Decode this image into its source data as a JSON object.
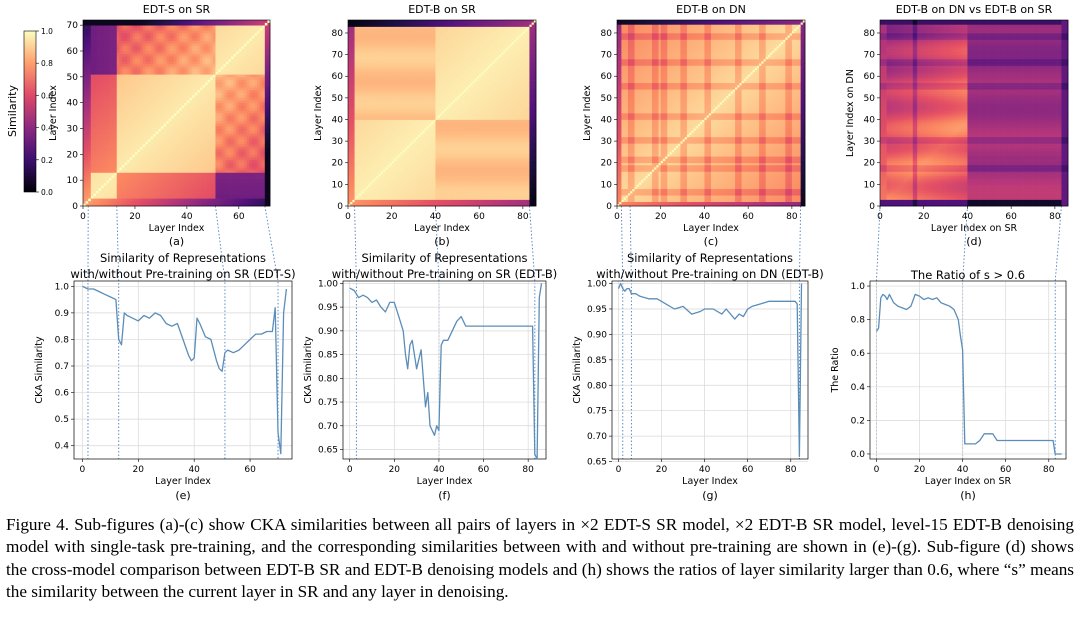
{
  "figure": {
    "caption": "Figure 4. Sub-figures (a)-(c) show CKA similarities between all pairs of layers in ×2 EDT-S SR model, ×2 EDT-B SR model, level-15 EDT-B denoising model with single-task pre-training, and the corresponding similarities between with and without pre-training are shown in (e)-(g). Sub-figure (d) shows the cross-model comparison between EDT-B SR and EDT-B denoising models and (h) shows the ratios of layer similarity larger than 0.6, where “s” means the similarity between the current layer in SR and any layer in denoising."
  },
  "colorbar": {
    "label": "Similarity",
    "ticks": [
      "0.0",
      "0.2",
      "0.4",
      "0.6",
      "0.8",
      "1.0"
    ]
  },
  "colors": {
    "line": "#5b8db8",
    "connector": "#4a7fc1",
    "grid": "#d8d8d8"
  },
  "chart_data": [
    {
      "id": "a",
      "type": "heatmap",
      "title": "EDT-S on SR",
      "xlabel": "Layer Index",
      "ylabel": "Layer Index",
      "sublabel": "(a)",
      "n": 72,
      "xticks": [
        "0",
        "20",
        "40",
        "60"
      ],
      "yticks": [
        "0",
        "10",
        "20",
        "30",
        "40",
        "50",
        "60",
        "70"
      ]
    },
    {
      "id": "b",
      "type": "heatmap",
      "title": "EDT-B on SR",
      "xlabel": "Layer Index",
      "ylabel": "Layer Index",
      "sublabel": "(b)",
      "n": 86,
      "xticks": [
        "0",
        "20",
        "40",
        "60",
        "80"
      ],
      "yticks": [
        "0",
        "10",
        "20",
        "30",
        "40",
        "50",
        "60",
        "70",
        "80"
      ]
    },
    {
      "id": "c",
      "type": "heatmap",
      "title": "EDT-B on DN",
      "xlabel": "Layer Index",
      "ylabel": "Layer Index",
      "sublabel": "(c)",
      "n": 86,
      "xticks": [
        "0",
        "20",
        "40",
        "60",
        "80"
      ],
      "yticks": [
        "0",
        "10",
        "20",
        "30",
        "40",
        "50",
        "60",
        "70",
        "80"
      ]
    },
    {
      "id": "d",
      "type": "heatmap",
      "title": "EDT-B on DN vs EDT-B on SR",
      "xlabel": "Layer Index on SR",
      "ylabel": "Layer Index on DN",
      "sublabel": "(d)",
      "n": 86,
      "xticks": [
        "0",
        "20",
        "40",
        "60",
        "80"
      ],
      "yticks": [
        "0",
        "10",
        "20",
        "30",
        "40",
        "50",
        "60",
        "70",
        "80"
      ]
    },
    {
      "id": "e",
      "type": "line",
      "title": "Similarity of Representations",
      "title2": "with/without Pre-training on SR (EDT-S)",
      "xlabel": "Layer Index",
      "ylabel": "CKA Similarity",
      "sublabel": "(e)",
      "xlim": [
        -3,
        75
      ],
      "ylim": [
        0.35,
        1.02
      ],
      "xticks": [
        "0",
        "20",
        "40",
        "60"
      ],
      "yticks": [
        "0.4",
        "0.5",
        "0.6",
        "0.7",
        "0.8",
        "0.9",
        "1.0"
      ],
      "x": [
        0,
        2,
        4,
        6,
        8,
        10,
        12,
        13,
        14,
        15,
        16,
        18,
        20,
        22,
        24,
        26,
        28,
        30,
        32,
        34,
        36,
        38,
        39,
        40,
        41,
        42,
        44,
        46,
        48,
        49,
        50,
        51,
        52,
        54,
        56,
        58,
        60,
        62,
        64,
        66,
        68,
        69,
        70,
        71,
        72,
        73
      ],
      "y": [
        1.0,
        0.99,
        0.99,
        0.98,
        0.97,
        0.96,
        0.95,
        0.8,
        0.78,
        0.9,
        0.89,
        0.88,
        0.87,
        0.89,
        0.88,
        0.9,
        0.89,
        0.86,
        0.85,
        0.86,
        0.8,
        0.74,
        0.72,
        0.73,
        0.88,
        0.86,
        0.81,
        0.8,
        0.72,
        0.69,
        0.68,
        0.75,
        0.76,
        0.75,
        0.76,
        0.78,
        0.8,
        0.82,
        0.82,
        0.83,
        0.83,
        0.92,
        0.45,
        0.37,
        0.9,
        0.99
      ]
    },
    {
      "id": "f",
      "type": "line",
      "title": "Similarity of Representations",
      "title2": "with/without Pre-training on SR (EDT-B)",
      "xlabel": "Layer Index",
      "ylabel": "CKA Similarity",
      "sublabel": "(f)",
      "xlim": [
        -3,
        88
      ],
      "ylim": [
        0.63,
        1.005
      ],
      "xticks": [
        "0",
        "20",
        "40",
        "60",
        "80"
      ],
      "yticks": [
        "0.65",
        "0.70",
        "0.75",
        "0.80",
        "0.85",
        "0.90",
        "0.95",
        "1.00"
      ],
      "x": [
        0,
        2,
        4,
        6,
        8,
        10,
        12,
        14,
        16,
        18,
        20,
        22,
        24,
        25,
        26,
        27,
        28,
        30,
        32,
        34,
        35,
        36,
        37,
        38,
        39,
        40,
        41,
        42,
        44,
        46,
        48,
        50,
        52,
        60,
        70,
        80,
        82,
        83,
        84,
        85,
        86
      ],
      "y": [
        0.99,
        0.985,
        0.97,
        0.975,
        0.97,
        0.96,
        0.965,
        0.95,
        0.94,
        0.96,
        0.96,
        0.93,
        0.9,
        0.85,
        0.82,
        0.87,
        0.88,
        0.82,
        0.86,
        0.74,
        0.77,
        0.7,
        0.69,
        0.68,
        0.7,
        0.69,
        0.87,
        0.88,
        0.88,
        0.9,
        0.92,
        0.93,
        0.91,
        0.91,
        0.91,
        0.91,
        0.91,
        0.64,
        0.63,
        0.97,
        1.0
      ]
    },
    {
      "id": "g",
      "type": "line",
      "title": "Similarity of Representations",
      "title2": "with/without Pre-training on DN (EDT-B)",
      "xlabel": "Layer Index",
      "ylabel": "CKA Similarity",
      "sublabel": "(g)",
      "xlim": [
        -3,
        88
      ],
      "ylim": [
        0.655,
        1.005
      ],
      "xticks": [
        "0",
        "20",
        "40",
        "60",
        "80"
      ],
      "yticks": [
        "0.65",
        "0.70",
        "0.75",
        "0.80",
        "0.85",
        "0.90",
        "0.95",
        "1.00"
      ],
      "x": [
        0,
        1,
        2,
        3,
        4,
        5,
        6,
        8,
        10,
        14,
        18,
        22,
        26,
        30,
        34,
        38,
        40,
        44,
        48,
        50,
        54,
        56,
        58,
        60,
        62,
        66,
        70,
        74,
        78,
        82,
        83,
        84,
        85
      ],
      "y": [
        0.99,
        1.0,
        0.99,
        0.985,
        0.99,
        0.99,
        0.98,
        0.98,
        0.975,
        0.97,
        0.97,
        0.96,
        0.95,
        0.955,
        0.94,
        0.945,
        0.95,
        0.95,
        0.94,
        0.95,
        0.93,
        0.94,
        0.935,
        0.95,
        0.955,
        0.96,
        0.965,
        0.965,
        0.965,
        0.965,
        0.96,
        0.66,
        1.0
      ]
    },
    {
      "id": "h",
      "type": "line",
      "title": "The Ratio of s > 0.6",
      "xlabel": "Layer Index on SR",
      "ylabel": "The Ratio",
      "sublabel": "(h)",
      "xlim": [
        -3,
        88
      ],
      "ylim": [
        -0.03,
        1.03
      ],
      "xticks": [
        "0",
        "20",
        "40",
        "60",
        "80"
      ],
      "yticks": [
        "0.0",
        "0.2",
        "0.4",
        "0.6",
        "0.8",
        "1.0"
      ],
      "x": [
        0,
        1,
        2,
        3,
        4,
        5,
        6,
        8,
        10,
        12,
        14,
        16,
        18,
        20,
        22,
        24,
        26,
        28,
        30,
        32,
        34,
        36,
        38,
        39,
        40,
        41,
        42,
        44,
        46,
        48,
        50,
        52,
        54,
        56,
        58,
        60,
        62,
        64,
        66,
        68,
        70,
        72,
        74,
        76,
        78,
        80,
        82,
        83,
        86
      ],
      "y": [
        0.73,
        0.75,
        0.93,
        0.95,
        0.94,
        0.92,
        0.95,
        0.9,
        0.88,
        0.87,
        0.86,
        0.88,
        0.95,
        0.94,
        0.92,
        0.93,
        0.92,
        0.93,
        0.9,
        0.89,
        0.88,
        0.86,
        0.8,
        0.7,
        0.62,
        0.06,
        0.06,
        0.06,
        0.06,
        0.08,
        0.12,
        0.12,
        0.12,
        0.08,
        0.08,
        0.08,
        0.08,
        0.08,
        0.08,
        0.08,
        0.08,
        0.08,
        0.08,
        0.08,
        0.08,
        0.08,
        0.08,
        0.0,
        0.0
      ]
    }
  ]
}
